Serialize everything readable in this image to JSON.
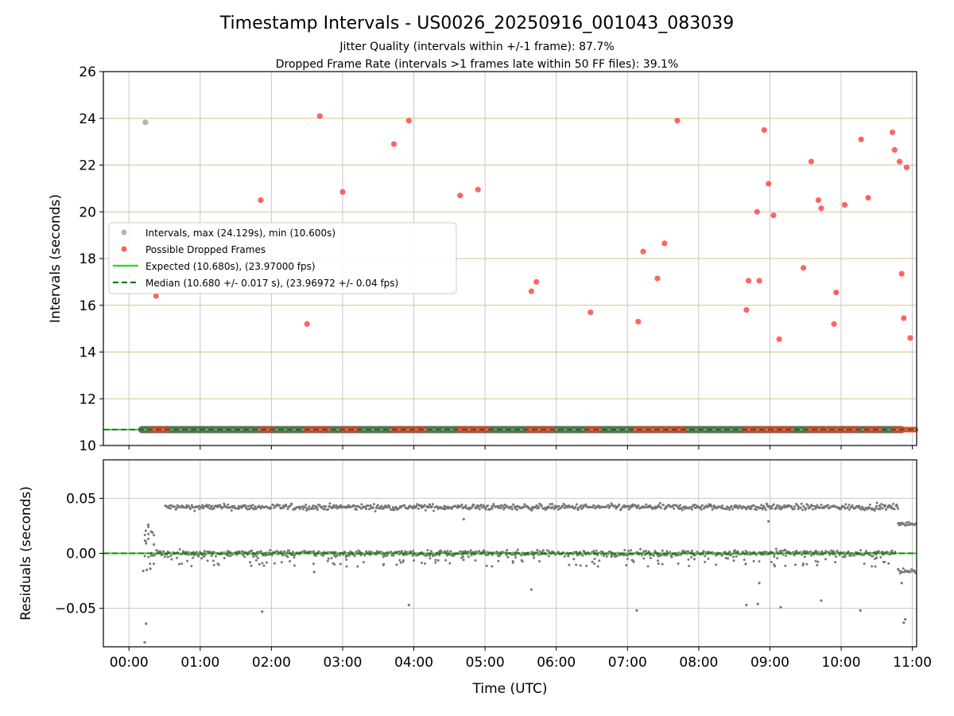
{
  "chart_data": [
    {
      "type": "scatter",
      "title": "Timestamp Intervals - US0026_20250916_001043_083039",
      "subtitle_1": "Jitter Quality (intervals within +/-1 frame): 87.7%",
      "subtitle_2": "Dropped Frame Rate (intervals >1 frames late within 50 FF files): 39.1%",
      "ylabel": "Intervals (seconds)",
      "ylim": [
        10,
        26
      ],
      "xlim_hours": [
        -0.36,
        11.06
      ],
      "yticks": [
        10,
        12,
        14,
        16,
        18,
        20,
        22,
        24,
        26
      ],
      "grid": true,
      "legend_position": "center-left",
      "legend": [
        "Intervals, max (24.129s), min (10.600s)",
        "Possible Dropped Frames",
        "Expected (10.680s), (23.97000 fps)",
        "Median (10.680 +/- 0.017 s), (23.96972 +/- 0.04 fps)"
      ],
      "expected_interval": 10.68,
      "median_interval": 10.68,
      "interval_points_outliers": [
        {
          "x": 0.23,
          "y": 23.83
        }
      ],
      "interval_band": {
        "x_start": 0.18,
        "x_end": 10.85,
        "y": 10.68
      },
      "dropped_frames": [
        {
          "x": 0.38,
          "y": 16.4
        },
        {
          "x": 1.85,
          "y": 20.5
        },
        {
          "x": 2.5,
          "y": 15.2
        },
        {
          "x": 2.68,
          "y": 24.1
        },
        {
          "x": 3.0,
          "y": 20.85
        },
        {
          "x": 3.72,
          "y": 22.9
        },
        {
          "x": 3.93,
          "y": 23.9
        },
        {
          "x": 4.65,
          "y": 20.7
        },
        {
          "x": 4.9,
          "y": 20.95
        },
        {
          "x": 5.65,
          "y": 16.6
        },
        {
          "x": 5.72,
          "y": 17.0
        },
        {
          "x": 6.48,
          "y": 15.7
        },
        {
          "x": 7.15,
          "y": 15.3
        },
        {
          "x": 7.22,
          "y": 18.3
        },
        {
          "x": 7.42,
          "y": 17.15
        },
        {
          "x": 7.52,
          "y": 18.65
        },
        {
          "x": 7.7,
          "y": 23.9
        },
        {
          "x": 8.67,
          "y": 15.8
        },
        {
          "x": 8.7,
          "y": 17.05
        },
        {
          "x": 8.82,
          "y": 20.0
        },
        {
          "x": 8.85,
          "y": 17.05
        },
        {
          "x": 8.92,
          "y": 23.5
        },
        {
          "x": 8.98,
          "y": 21.2
        },
        {
          "x": 9.05,
          "y": 19.85
        },
        {
          "x": 9.13,
          "y": 14.55
        },
        {
          "x": 9.47,
          "y": 17.6
        },
        {
          "x": 9.58,
          "y": 22.15
        },
        {
          "x": 9.68,
          "y": 20.5
        },
        {
          "x": 9.72,
          "y": 20.15
        },
        {
          "x": 9.9,
          "y": 15.2
        },
        {
          "x": 9.93,
          "y": 16.55
        },
        {
          "x": 10.05,
          "y": 20.3
        },
        {
          "x": 10.28,
          "y": 23.1
        },
        {
          "x": 10.38,
          "y": 20.6
        },
        {
          "x": 10.72,
          "y": 23.4
        },
        {
          "x": 10.75,
          "y": 22.65
        },
        {
          "x": 10.82,
          "y": 22.15
        },
        {
          "x": 10.85,
          "y": 17.35
        },
        {
          "x": 10.88,
          "y": 15.45
        },
        {
          "x": 10.92,
          "y": 21.9
        },
        {
          "x": 10.97,
          "y": 14.6
        }
      ],
      "dropped_baseline_segments_hours": [
        [
          0.33,
          0.55
        ],
        [
          1.85,
          2.0
        ],
        [
          2.48,
          2.82
        ],
        [
          3.0,
          3.2
        ],
        [
          3.7,
          3.92
        ],
        [
          3.95,
          4.15
        ],
        [
          4.62,
          4.82
        ],
        [
          4.85,
          5.05
        ],
        [
          5.6,
          5.95
        ],
        [
          6.45,
          6.6
        ],
        [
          7.1,
          7.4
        ],
        [
          7.45,
          7.8
        ],
        [
          8.65,
          8.75
        ],
        [
          8.8,
          9.3
        ],
        [
          9.55,
          10.25
        ],
        [
          10.35,
          10.55
        ],
        [
          10.75,
          11.05
        ]
      ]
    },
    {
      "type": "scatter",
      "title": "",
      "xlabel": "Time (UTC)",
      "ylabel": "Residuals (seconds)",
      "ylim": [
        -0.085,
        0.085
      ],
      "yticks": [
        -0.05,
        0.0,
        0.05
      ],
      "ytick_labels": [
        "−0.05",
        "0.00",
        "0.05"
      ],
      "xticks_hours": [
        0,
        1,
        2,
        3,
        4,
        5,
        6,
        7,
        8,
        9,
        10,
        11
      ],
      "xtick_labels": [
        "00:00",
        "01:00",
        "02:00",
        "03:00",
        "04:00",
        "05:00",
        "06:00",
        "07:00",
        "08:00",
        "09:00",
        "10:00",
        "11:00"
      ],
      "grid": true,
      "zero_line": 0.0,
      "residual_bands": [
        {
          "name": "upper",
          "center": 0.042,
          "x_start": 0.5,
          "x_end": 10.8
        },
        {
          "name": "lower",
          "center": 0.0,
          "x_start": 0.3,
          "x_end": 10.75
        }
      ],
      "residual_outliers": [
        {
          "x": 0.22,
          "y": -0.081
        },
        {
          "x": 0.24,
          "y": -0.064
        },
        {
          "x": 0.27,
          "y": 0.026
        },
        {
          "x": 0.3,
          "y": -0.014
        },
        {
          "x": 0.33,
          "y": 0.019
        },
        {
          "x": 0.35,
          "y": 0.008
        },
        {
          "x": 0.2,
          "y": -0.016
        },
        {
          "x": 0.25,
          "y": -0.015
        },
        {
          "x": 1.87,
          "y": -0.053
        },
        {
          "x": 2.6,
          "y": -0.017
        },
        {
          "x": 3.93,
          "y": -0.047
        },
        {
          "x": 4.7,
          "y": 0.031
        },
        {
          "x": 5.65,
          "y": -0.033
        },
        {
          "x": 7.13,
          "y": -0.052
        },
        {
          "x": 8.67,
          "y": -0.047
        },
        {
          "x": 8.83,
          "y": -0.046
        },
        {
          "x": 8.85,
          "y": -0.027
        },
        {
          "x": 8.98,
          "y": 0.029
        },
        {
          "x": 9.15,
          "y": -0.049
        },
        {
          "x": 9.72,
          "y": -0.043
        },
        {
          "x": 10.27,
          "y": -0.052
        },
        {
          "x": 10.85,
          "y": -0.027
        },
        {
          "x": 10.88,
          "y": -0.063
        },
        {
          "x": 10.9,
          "y": -0.06
        }
      ],
      "residual_tail": {
        "x_start": 10.8,
        "x_end": 11.06,
        "upper": 0.027,
        "lower": -0.016
      }
    }
  ],
  "colors": {
    "interval": "#a0a0a0",
    "dropped": "#ff3030",
    "expected": "#22dd22",
    "median": "#0a7d0a",
    "residual": "#777777",
    "hgrid_top": "#d9c38a",
    "grid": "#c8c8c8"
  }
}
